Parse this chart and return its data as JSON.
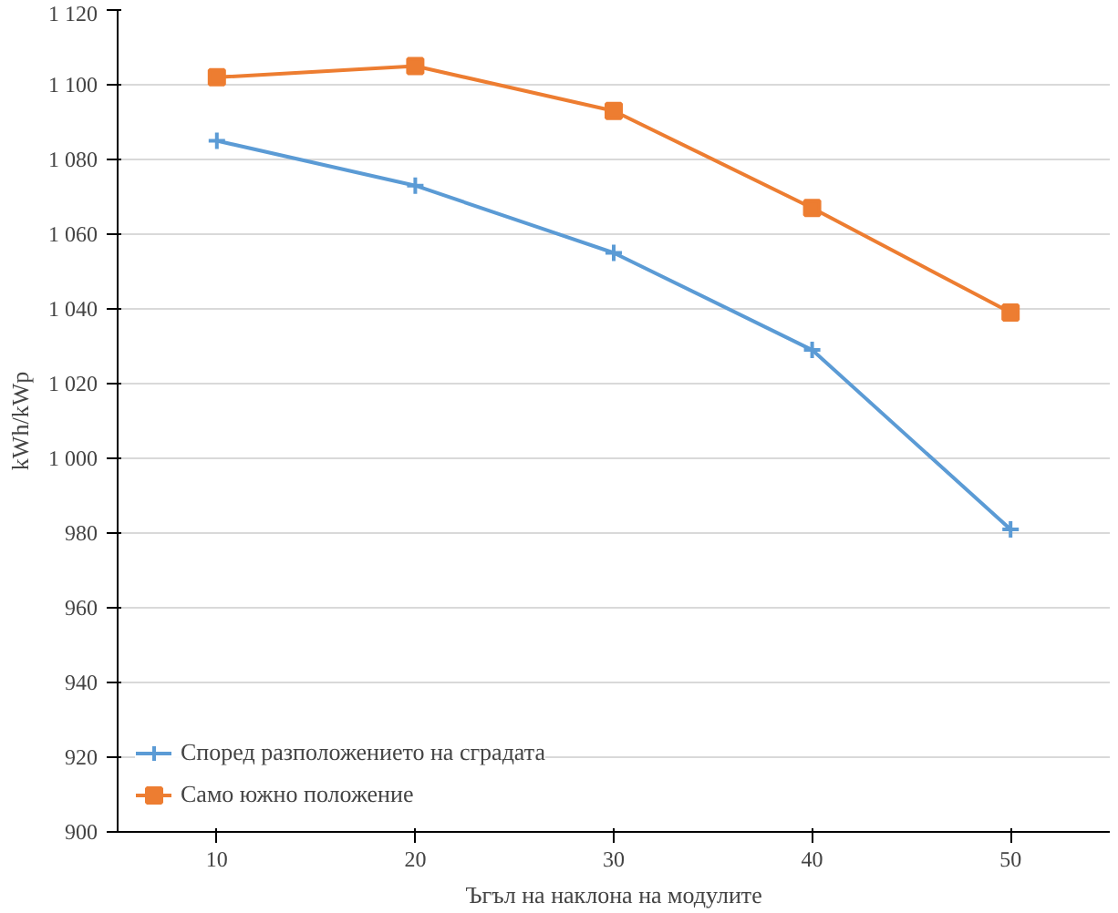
{
  "chart_data": {
    "type": "line",
    "xlabel": "Ъгъл на наклона на модулите",
    "ylabel": "kWh/kWp",
    "categories": [
      "10",
      "20",
      "30",
      "40",
      "50"
    ],
    "series": [
      {
        "name": "Според разположението на сградата",
        "color": "#5b9bd5",
        "marker": "cross",
        "values": [
          1085,
          1073,
          1055,
          1029,
          981
        ]
      },
      {
        "name": "Само южно положение",
        "color": "#ed7d31",
        "marker": "square",
        "values": [
          1102,
          1105,
          1093,
          1067,
          1039
        ]
      }
    ],
    "ylim": [
      900,
      1120
    ],
    "yticks": [
      {
        "value": 900,
        "label": "900"
      },
      {
        "value": 920,
        "label": "920"
      },
      {
        "value": 940,
        "label": "940"
      },
      {
        "value": 960,
        "label": "960"
      },
      {
        "value": 980,
        "label": "980"
      },
      {
        "value": 1000,
        "label": "1 000"
      },
      {
        "value": 1020,
        "label": "1 020"
      },
      {
        "value": 1040,
        "label": "1 040"
      },
      {
        "value": 1060,
        "label": "1 060"
      },
      {
        "value": 1080,
        "label": "1 080"
      },
      {
        "value": 1100,
        "label": "1 100"
      },
      {
        "value": 1120,
        "label": "1 120"
      }
    ],
    "grid": "y",
    "legend": "bottom left",
    "line_style": "solid"
  }
}
